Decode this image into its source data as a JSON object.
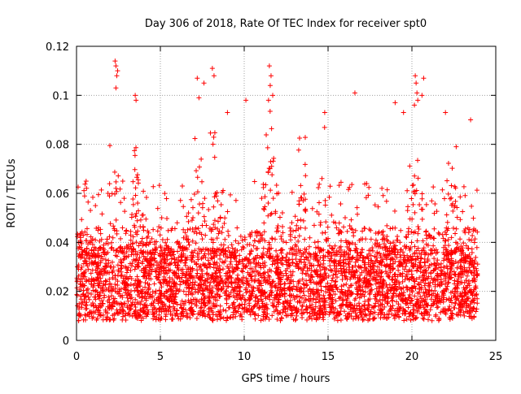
{
  "chart_data": {
    "type": "scatter",
    "title": "Day 306 of 2018, Rate Of TEC Index for receiver spt0",
    "xlabel": "GPS time / hours",
    "ylabel": "ROTI / TECUs",
    "xlim": [
      0,
      25
    ],
    "ylim": [
      0,
      0.12
    ],
    "x_ticks": [
      0,
      5,
      10,
      15,
      20,
      25
    ],
    "x_tick_labels": [
      "0",
      "5",
      "10",
      "15",
      "20",
      "25"
    ],
    "y_ticks": [
      0,
      0.02,
      0.04,
      0.06,
      0.08,
      0.1,
      0.12
    ],
    "y_tick_labels": [
      "0",
      "0.02",
      "0.04",
      "0.06",
      "0.08",
      "0.1",
      "0.12"
    ],
    "grid": true,
    "marker": "+",
    "series": [
      {
        "name": "ROTI",
        "color": "#ff0000",
        "note": "dense point cloud: most values 0.005–0.06 TECU, outliers listed below",
        "points": [
          [
            2.3,
            0.114
          ],
          [
            2.35,
            0.112
          ],
          [
            2.4,
            0.108
          ],
          [
            2.35,
            0.103
          ],
          [
            2.45,
            0.11
          ],
          [
            3.5,
            0.1
          ],
          [
            3.55,
            0.098
          ],
          [
            7.2,
            0.107
          ],
          [
            7.3,
            0.099
          ],
          [
            7.6,
            0.105
          ],
          [
            8.1,
            0.111
          ],
          [
            8.2,
            0.108
          ],
          [
            9.0,
            0.093
          ],
          [
            10.1,
            0.098
          ],
          [
            11.5,
            0.112
          ],
          [
            11.6,
            0.108
          ],
          [
            11.55,
            0.104
          ],
          [
            11.7,
            0.1
          ],
          [
            11.45,
            0.098
          ],
          [
            14.8,
            0.093
          ],
          [
            16.6,
            0.101
          ],
          [
            19.0,
            0.097
          ],
          [
            19.5,
            0.093
          ],
          [
            20.2,
            0.108
          ],
          [
            20.25,
            0.105
          ],
          [
            20.3,
            0.101
          ],
          [
            20.7,
            0.107
          ],
          [
            20.6,
            0.1
          ],
          [
            20.15,
            0.096
          ],
          [
            20.35,
            0.098
          ],
          [
            22.0,
            0.093
          ],
          [
            23.5,
            0.09
          ]
        ]
      }
    ]
  }
}
